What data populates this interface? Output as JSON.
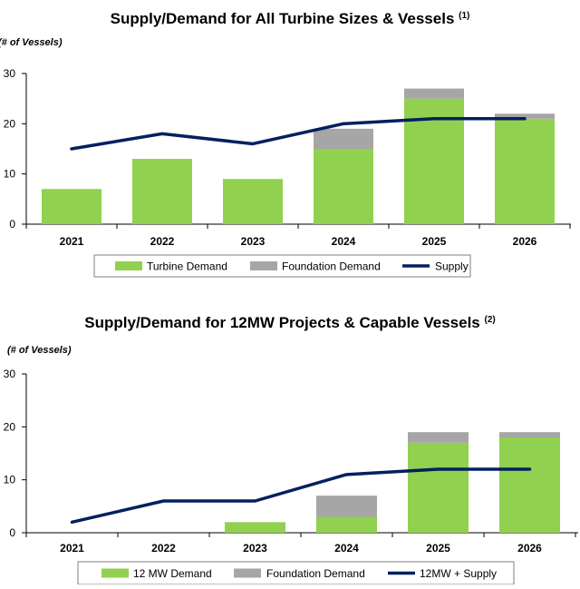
{
  "colors": {
    "turbine": "#92D050",
    "foundation": "#A6A6A6",
    "supply": "#002060",
    "axis": "#000000",
    "legend_border": "#7F7F7F"
  },
  "chart_data": [
    {
      "type": "bar",
      "stacked": true,
      "title": "Supply/Demand for All Turbine Sizes & Vessels",
      "title_note": "(1)",
      "ylabel": "(# of Vessels)",
      "ylim": [
        0,
        30
      ],
      "yticks": [
        "0",
        "10",
        "20",
        "30"
      ],
      "categories": [
        "2021",
        "2022",
        "2023",
        "2024",
        "2025",
        "2026"
      ],
      "series": [
        {
          "name": "Turbine Demand",
          "kind": "bar",
          "values": [
            7,
            13,
            9,
            15,
            25,
            21
          ]
        },
        {
          "name": "Foundation Demand",
          "kind": "bar",
          "values": [
            0,
            0,
            0,
            4,
            2,
            1
          ]
        },
        {
          "name": "Supply",
          "kind": "line",
          "values": [
            15,
            18,
            16,
            20,
            21,
            21
          ]
        }
      ],
      "legend": [
        "Turbine Demand",
        "Foundation Demand",
        "Supply"
      ]
    },
    {
      "type": "bar",
      "stacked": true,
      "title": "Supply/Demand for 12MW Projects & Capable Vessels",
      "title_note": "(2)",
      "ylabel": "(# of Vessels)",
      "ylim": [
        0,
        30
      ],
      "yticks": [
        "0",
        "10",
        "20",
        "30"
      ],
      "categories": [
        "2021",
        "2022",
        "2023",
        "2024",
        "2025",
        "2026"
      ],
      "series": [
        {
          "name": "12 MW Demand",
          "kind": "bar",
          "values": [
            0,
            0,
            2,
            3,
            17,
            18
          ]
        },
        {
          "name": "Foundation Demand",
          "kind": "bar",
          "values": [
            0,
            0,
            0,
            4,
            2,
            1
          ]
        },
        {
          "name": "12MW + Supply",
          "kind": "line",
          "values": [
            2,
            6,
            6,
            11,
            12,
            12
          ]
        }
      ],
      "legend": [
        "12 MW Demand",
        "Foundation Demand",
        "12MW + Supply"
      ]
    }
  ]
}
